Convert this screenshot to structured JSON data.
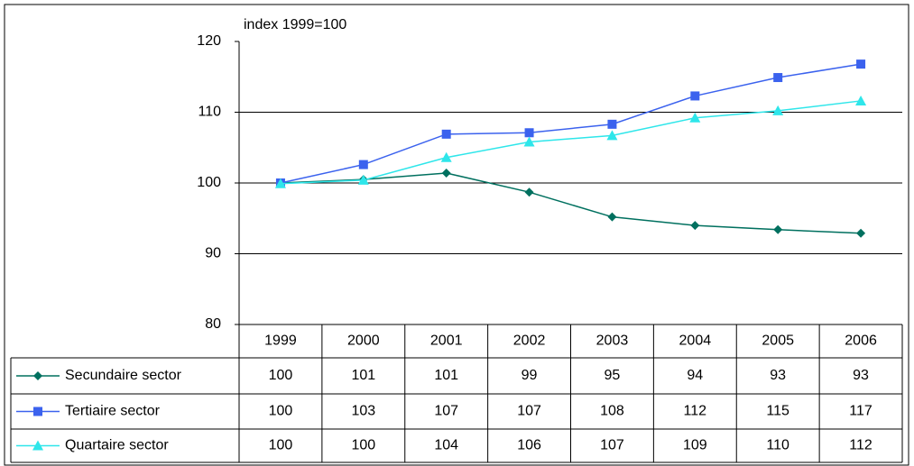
{
  "chart_data": {
    "type": "line",
    "subtitle": "index 1999=100",
    "categories": [
      "1999",
      "2000",
      "2001",
      "2002",
      "2003",
      "2004",
      "2005",
      "2006"
    ],
    "series": [
      {
        "name": "Secundaire sector",
        "color": "#00705f",
        "marker": "diamond",
        "values": [
          100,
          100.5,
          101.4,
          98.7,
          95.2,
          94.0,
          93.4,
          92.9
        ],
        "value_labels": [
          "100",
          "101",
          "101",
          "99",
          "95",
          "94",
          "93",
          "93"
        ]
      },
      {
        "name": "Tertiaire sector",
        "color": "#3b62ee",
        "marker": "square",
        "values": [
          100,
          102.6,
          106.9,
          107.1,
          108.3,
          112.3,
          114.9,
          116.8
        ],
        "value_labels": [
          "100",
          "103",
          "107",
          "107",
          "108",
          "112",
          "115",
          "117"
        ]
      },
      {
        "name": "Quartaire sector",
        "color": "#2ee6ea",
        "marker": "triangle",
        "values": [
          99.9,
          100.4,
          103.6,
          105.8,
          106.7,
          109.2,
          110.2,
          111.6
        ],
        "value_labels": [
          "100",
          "100",
          "104",
          "106",
          "107",
          "109",
          "110",
          "112"
        ]
      }
    ],
    "ylim": [
      80,
      120
    ],
    "yticks": [
      80,
      90,
      100,
      110,
      120
    ],
    "grid": true
  }
}
